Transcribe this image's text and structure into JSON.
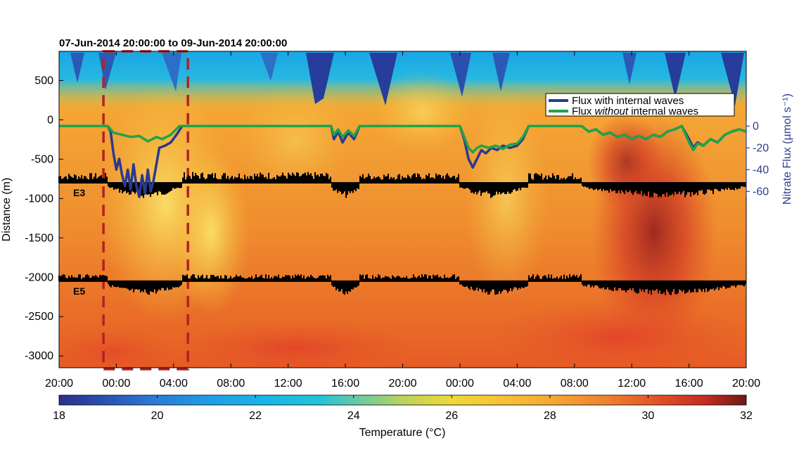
{
  "title": "07-Jun-2014 20:00:00 to 09-Jun-2014 20:00:00",
  "chart_data": {
    "type": "heatmap",
    "title": "07-Jun-2014 20:00:00 to 09-Jun-2014 20:00:00",
    "x_axis": {
      "unit": "hours since 07-Jun-2014 20:00",
      "range": [
        0,
        48
      ],
      "ticks": [
        0,
        4,
        8,
        12,
        16,
        20,
        24,
        28,
        32,
        36,
        40,
        44,
        48
      ],
      "tick_labels": [
        "20:00",
        "00:00",
        "04:00",
        "08:00",
        "12:00",
        "16:00",
        "20:00",
        "00:00",
        "04:00",
        "08:00",
        "12:00",
        "16:00",
        "20:00"
      ]
    },
    "y_axis": {
      "label": "Distance (m)",
      "range": [
        -3150,
        870
      ],
      "ticks": [
        500,
        0,
        -500,
        -1000,
        -1500,
        -2000,
        -2500,
        -3000
      ],
      "tick_labels": [
        "500",
        "0",
        "-500",
        "-1000",
        "-1500",
        "-2000",
        "-2500",
        "-3000"
      ]
    },
    "y2_axis": {
      "label": "Nitrate Flux (µmol s⁻¹)",
      "ticks": [
        0,
        -20,
        -40,
        -60
      ],
      "tick_labels": [
        "0",
        "-20",
        "-40",
        "-60"
      ],
      "color": "#2e3e8f"
    },
    "colorbar": {
      "label": "Temperature (°C)",
      "range": [
        18,
        32
      ],
      "ticks": [
        18,
        20,
        22,
        24,
        26,
        28,
        30,
        32
      ],
      "tick_labels": [
        "18",
        "20",
        "22",
        "24",
        "26",
        "28",
        "30",
        "32"
      ]
    },
    "legend": {
      "placement": "top-right",
      "entries": [
        {
          "prefix": "Flux with internal waves",
          "italic": "",
          "suffix": "",
          "color": "#2b3990"
        },
        {
          "prefix": "Flux ",
          "italic": "without",
          "suffix": " internal waves",
          "color": "#1fa34a"
        }
      ]
    },
    "series": [
      {
        "name": "Flux with internal waves",
        "color": "#2b3990",
        "points": [
          [
            0,
            0
          ],
          [
            3.4,
            0
          ],
          [
            3.6,
            -5
          ],
          [
            3.8,
            -25
          ],
          [
            4.0,
            -40
          ],
          [
            4.2,
            -30
          ],
          [
            4.4,
            -45
          ],
          [
            4.6,
            -55
          ],
          [
            4.8,
            -40
          ],
          [
            5.0,
            -58
          ],
          [
            5.2,
            -35
          ],
          [
            5.4,
            -55
          ],
          [
            5.6,
            -65
          ],
          [
            5.8,
            -45
          ],
          [
            6.0,
            -62
          ],
          [
            6.2,
            -40
          ],
          [
            6.4,
            -60
          ],
          [
            6.6,
            -50
          ],
          [
            6.8,
            -35
          ],
          [
            7.0,
            -20
          ],
          [
            7.4,
            -18
          ],
          [
            7.8,
            -15
          ],
          [
            8.2,
            -8
          ],
          [
            8.6,
            0
          ],
          [
            19.0,
            0
          ],
          [
            19.2,
            -12
          ],
          [
            19.5,
            -5
          ],
          [
            19.8,
            -15
          ],
          [
            20.2,
            -6
          ],
          [
            20.6,
            -12
          ],
          [
            21.0,
            0
          ],
          [
            28.0,
            0
          ],
          [
            28.3,
            -12
          ],
          [
            28.6,
            -30
          ],
          [
            28.9,
            -38
          ],
          [
            29.2,
            -30
          ],
          [
            29.5,
            -22
          ],
          [
            29.8,
            -25
          ],
          [
            30.2,
            -20
          ],
          [
            30.6,
            -22
          ],
          [
            31.0,
            -18
          ],
          [
            31.5,
            -20
          ],
          [
            32.0,
            -18
          ],
          [
            32.4,
            -12
          ],
          [
            32.8,
            0
          ],
          [
            36.5,
            0
          ],
          [
            37.0,
            -5
          ],
          [
            37.5,
            -3
          ],
          [
            38.0,
            -8
          ],
          [
            38.5,
            -6
          ],
          [
            39.0,
            -10
          ],
          [
            39.5,
            -8
          ],
          [
            40.0,
            -12
          ],
          [
            40.5,
            -9
          ],
          [
            41.0,
            -12
          ],
          [
            41.5,
            -8
          ],
          [
            42.0,
            -10
          ],
          [
            42.5,
            -5
          ],
          [
            43.0,
            -3
          ],
          [
            43.5,
            0
          ],
          [
            44.0,
            -12
          ],
          [
            44.3,
            -20
          ],
          [
            44.6,
            -15
          ],
          [
            45.0,
            -18
          ],
          [
            45.5,
            -12
          ],
          [
            46.0,
            -15
          ],
          [
            46.5,
            -8
          ],
          [
            47.0,
            -5
          ],
          [
            47.5,
            -3
          ],
          [
            48.0,
            -5
          ]
        ]
      },
      {
        "name": "Flux without internal waves",
        "color": "#1fa34a",
        "points": [
          [
            0,
            0
          ],
          [
            3.4,
            0
          ],
          [
            3.8,
            -6
          ],
          [
            4.4,
            -8
          ],
          [
            5.0,
            -10
          ],
          [
            5.6,
            -9
          ],
          [
            6.2,
            -14
          ],
          [
            6.8,
            -10
          ],
          [
            7.2,
            -12
          ],
          [
            7.8,
            -8
          ],
          [
            8.4,
            0
          ],
          [
            19.0,
            0
          ],
          [
            19.2,
            -8
          ],
          [
            19.5,
            -3
          ],
          [
            19.8,
            -10
          ],
          [
            20.2,
            -4
          ],
          [
            20.6,
            -9
          ],
          [
            21.0,
            0
          ],
          [
            28.0,
            0
          ],
          [
            28.3,
            -10
          ],
          [
            28.6,
            -20
          ],
          [
            28.9,
            -24
          ],
          [
            29.2,
            -20
          ],
          [
            29.5,
            -18
          ],
          [
            30.0,
            -20
          ],
          [
            30.5,
            -18
          ],
          [
            31.0,
            -21
          ],
          [
            31.5,
            -17
          ],
          [
            32.0,
            -16
          ],
          [
            32.4,
            -10
          ],
          [
            32.8,
            0
          ],
          [
            36.5,
            0
          ],
          [
            37.0,
            -5
          ],
          [
            37.5,
            -3
          ],
          [
            38.0,
            -8
          ],
          [
            38.5,
            -6
          ],
          [
            39.0,
            -10
          ],
          [
            39.5,
            -8
          ],
          [
            40.0,
            -12
          ],
          [
            40.5,
            -9
          ],
          [
            41.0,
            -12
          ],
          [
            41.5,
            -8
          ],
          [
            42.0,
            -10
          ],
          [
            42.5,
            -5
          ],
          [
            43.0,
            -3
          ],
          [
            43.5,
            0
          ],
          [
            44.0,
            -15
          ],
          [
            44.3,
            -22
          ],
          [
            44.6,
            -16
          ],
          [
            45.0,
            -18
          ],
          [
            45.5,
            -12
          ],
          [
            46.0,
            -15
          ],
          [
            46.5,
            -8
          ],
          [
            47.0,
            -5
          ],
          [
            47.5,
            -3
          ],
          [
            48.0,
            -5
          ]
        ]
      }
    ],
    "moorings": [
      {
        "label": "E3",
        "baseline_m": -800
      },
      {
        "label": "E5",
        "baseline_m": -2050
      }
    ],
    "highlight_box": {
      "x": [
        3.1,
        9.0
      ],
      "style": "dashed",
      "color": "#b22222"
    }
  }
}
